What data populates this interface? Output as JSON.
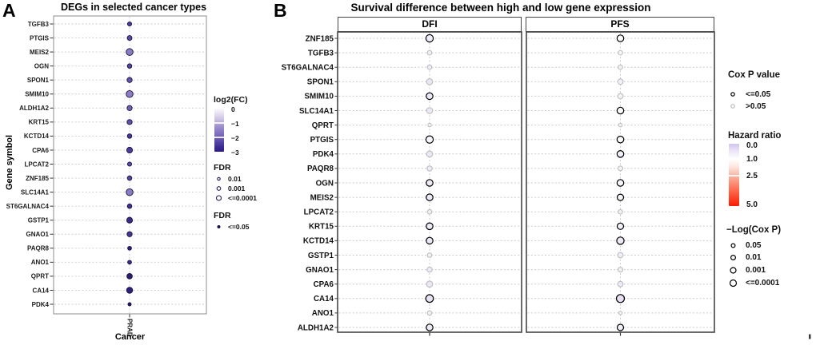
{
  "figure_labels": {
    "panel_a": "A",
    "panel_b": "B"
  },
  "panel_a": {
    "title": "DEGs in selected cancer types",
    "ylabel": "Gene symbol",
    "xlabel": "Cancer",
    "x_tick": "PRAD",
    "legend_log2fc": {
      "title": "log2(FC)",
      "ticks": [
        "0",
        "−1",
        "−2",
        "−3"
      ]
    },
    "legend_fdr_size": {
      "title": "FDR",
      "items": [
        "0.01",
        "0.001",
        "<=0.0001"
      ]
    },
    "legend_fdr_shape": {
      "title": "FDR",
      "items": [
        "<=0.05"
      ]
    }
  },
  "panel_b": {
    "title": "Survival difference between high and low gene expression",
    "facets": [
      "DFI",
      "PFS"
    ],
    "legend_cox": {
      "title": "Cox P value",
      "items": [
        "<=0.05",
        ">0.05"
      ]
    },
    "legend_hr": {
      "title": "Hazard ratio",
      "ticks": [
        "0.0",
        "1.0",
        "2.5",
        "5.0"
      ]
    },
    "legend_logcox": {
      "title": "−Log(Cox P)",
      "items": [
        "0.05",
        "0.01",
        "0.001",
        "<=0.0001"
      ]
    }
  },
  "chart_data": [
    {
      "type": "scatter",
      "title": "DEGs in selected cancer types",
      "xlabel": "Cancer",
      "ylabel": "Gene symbol",
      "x_categories": [
        "PRAD"
      ],
      "color_scale": {
        "name": "log2(FC)",
        "domain": [
          0,
          -3
        ],
        "colors": [
          "#fbfafd",
          "#2b1e85"
        ]
      },
      "size_scale": {
        "name": "FDR",
        "items": [
          "0.01",
          "0.001",
          "<=0.0001"
        ]
      },
      "shape_scale": {
        "name": "FDR",
        "items": [
          "<=0.05"
        ]
      },
      "grid": "dashed",
      "points": [
        {
          "gene": "TGFB3",
          "log2fc_est": -1.6,
          "fdr_bucket": "0.001",
          "r": 2.6,
          "color": "#4c3da0"
        },
        {
          "gene": "PTGIS",
          "log2fc_est": -1.4,
          "fdr_bucket": "0.001",
          "r": 3.0,
          "color": "#5a4aa8"
        },
        {
          "gene": "MEIS2",
          "log2fc_est": -0.8,
          "fdr_bucket": "<=0.0001",
          "r": 4.3,
          "color": "#8b7ac4"
        },
        {
          "gene": "OGN",
          "log2fc_est": -1.6,
          "fdr_bucket": "0.001",
          "r": 2.8,
          "color": "#54449f"
        },
        {
          "gene": "SPON1",
          "log2fc_est": -1.3,
          "fdr_bucket": "0.001",
          "r": 3.2,
          "color": "#6253ab"
        },
        {
          "gene": "SMIM10",
          "log2fc_est": -0.8,
          "fdr_bucket": "<=0.0001",
          "r": 4.3,
          "color": "#8d7cc6"
        },
        {
          "gene": "ALDH1A2",
          "log2fc_est": -1.1,
          "fdr_bucket": "0.001",
          "r": 3.2,
          "color": "#6f60b4"
        },
        {
          "gene": "KRT15",
          "log2fc_est": -1.3,
          "fdr_bucket": "0.001",
          "r": 3.2,
          "color": "#6152aa"
        },
        {
          "gene": "KCTD14",
          "log2fc_est": -1.8,
          "fdr_bucket": "0.001",
          "r": 2.8,
          "color": "#46389a"
        },
        {
          "gene": "CPA6",
          "log2fc_est": -1.6,
          "fdr_bucket": "0.001",
          "r": 3.6,
          "color": "#4b3c9e"
        },
        {
          "gene": "LPCAT2",
          "log2fc_est": -1.4,
          "fdr_bucket": "0.01",
          "r": 2.6,
          "color": "#5c4ca6"
        },
        {
          "gene": "ZNF185",
          "log2fc_est": -1.5,
          "fdr_bucket": "0.001",
          "r": 2.8,
          "color": "#55469e"
        },
        {
          "gene": "SLC14A1",
          "log2fc_est": -0.8,
          "fdr_bucket": "<=0.0001",
          "r": 4.3,
          "color": "#8a79c3"
        },
        {
          "gene": "ST6GALNAC4",
          "log2fc_est": -2.0,
          "fdr_bucket": "0.001",
          "r": 2.8,
          "color": "#3f3194"
        },
        {
          "gene": "GSTP1",
          "log2fc_est": -2.1,
          "fdr_bucket": "<=0.0001",
          "r": 3.6,
          "color": "#392b8c"
        },
        {
          "gene": "GNAO1",
          "log2fc_est": -1.9,
          "fdr_bucket": "0.001",
          "r": 3.2,
          "color": "#443696"
        },
        {
          "gene": "PAQR8",
          "log2fc_est": -2.4,
          "fdr_bucket": "0.01",
          "r": 2.4,
          "color": "#2e2280"
        },
        {
          "gene": "ANO1",
          "log2fc_est": -2.0,
          "fdr_bucket": "0.01",
          "r": 2.4,
          "color": "#3a2d8c"
        },
        {
          "gene": "QPRT",
          "log2fc_est": -2.6,
          "fdr_bucket": "0.001",
          "r": 3.4,
          "color": "#271e72"
        },
        {
          "gene": "CA14",
          "log2fc_est": -2.4,
          "fdr_bucket": "0.001",
          "r": 3.8,
          "color": "#2c2178"
        },
        {
          "gene": "PDK4",
          "log2fc_est": -2.7,
          "fdr_bucket": "0.01",
          "r": 2.0,
          "color": "#221a68"
        }
      ]
    },
    {
      "type": "scatter",
      "title": "Survival difference between high and low gene expression",
      "facets": [
        "DFI",
        "PFS"
      ],
      "color_scale": {
        "name": "Hazard ratio",
        "domain": [
          0,
          5
        ],
        "colors": [
          "#d2c2ec",
          "#ffffff",
          "#fb1b03"
        ]
      },
      "size_scale": {
        "name": "−Log(Cox P)",
        "items": [
          "0.05",
          "0.01",
          "0.001",
          "<=0.0001"
        ]
      },
      "outline_scale": {
        "name": "Cox P value",
        "sig_color": "#000000",
        "ns_color": "#b8b8b8"
      },
      "grid": "dashed",
      "genes": [
        "ZNF185",
        "TGFB3",
        "ST6GALNAC4",
        "SPON1",
        "SMIM10",
        "SLC14A1",
        "QPRT",
        "PTGIS",
        "PDK4",
        "PAQR8",
        "OGN",
        "MEIS2",
        "LPCAT2",
        "KRT15",
        "KCTD14",
        "GSTP1",
        "GNAO1",
        "CPA6",
        "CA14",
        "ANO1",
        "ALDH1A2"
      ],
      "series": [
        {
          "name": "DFI",
          "points": [
            {
              "gene": "ZNF185",
              "r": 4.6,
              "sig": true,
              "fill": "#f1edf8",
              "hr_est": 0.7,
              "p_bucket": "<=0.0001"
            },
            {
              "gene": "TGFB3",
              "r": 2.8,
              "sig": false,
              "fill": "#f3f0f9",
              "hr_est": 0.8,
              "p_bucket": "0.05"
            },
            {
              "gene": "ST6GALNAC4",
              "r": 2.8,
              "sig": false,
              "fill": "#f1edf8",
              "hr_est": 0.7,
              "p_bucket": "0.05"
            },
            {
              "gene": "SPON1",
              "r": 3.8,
              "sig": false,
              "fill": "#ebe5f4",
              "hr_est": 0.6,
              "p_bucket": "0.001"
            },
            {
              "gene": "SMIM10",
              "r": 4.2,
              "sig": true,
              "fill": "#ede8f6",
              "hr_est": 0.7,
              "p_bucket": "<=0.0001"
            },
            {
              "gene": "SLC14A1",
              "r": 3.8,
              "sig": false,
              "fill": "#ece6f5",
              "hr_est": 0.6,
              "p_bucket": "0.001"
            },
            {
              "gene": "QPRT",
              "r": 2.2,
              "sig": false,
              "fill": "#f5f2fa",
              "hr_est": 0.9,
              "p_bucket": "0.05"
            },
            {
              "gene": "PTGIS",
              "r": 4.6,
              "sig": true,
              "fill": "#f7f5fb",
              "hr_est": 0.9,
              "p_bucket": "<=0.0001"
            },
            {
              "gene": "PDK4",
              "r": 3.8,
              "sig": false,
              "fill": "#ece6f5",
              "hr_est": 0.6,
              "p_bucket": "0.001"
            },
            {
              "gene": "PAQR8",
              "r": 3.2,
              "sig": false,
              "fill": "#f0ecf7",
              "hr_est": 0.7,
              "p_bucket": "0.01"
            },
            {
              "gene": "OGN",
              "r": 4.2,
              "sig": true,
              "fill": "#efeaf6",
              "hr_est": 0.7,
              "p_bucket": "<=0.0001"
            },
            {
              "gene": "MEIS2",
              "r": 4.2,
              "sig": true,
              "fill": "#eee9f6",
              "hr_est": 0.7,
              "p_bucket": "<=0.0001"
            },
            {
              "gene": "LPCAT2",
              "r": 2.8,
              "sig": false,
              "fill": "#f2eff8",
              "hr_est": 0.8,
              "p_bucket": "0.05"
            },
            {
              "gene": "KRT15",
              "r": 4.2,
              "sig": true,
              "fill": "#eee9f6",
              "hr_est": 0.7,
              "p_bucket": "<=0.0001"
            },
            {
              "gene": "KCTD14",
              "r": 4.2,
              "sig": true,
              "fill": "#ece7f5",
              "hr_est": 0.7,
              "p_bucket": "<=0.0001"
            },
            {
              "gene": "GSTP1",
              "r": 2.8,
              "sig": false,
              "fill": "#f4f1f9",
              "hr_est": 0.8,
              "p_bucket": "0.05"
            },
            {
              "gene": "GNAO1",
              "r": 3.2,
              "sig": false,
              "fill": "#f0ecf7",
              "hr_est": 0.7,
              "p_bucket": "0.01"
            },
            {
              "gene": "CPA6",
              "r": 3.8,
              "sig": false,
              "fill": "#ece6f5",
              "hr_est": 0.6,
              "p_bucket": "0.001"
            },
            {
              "gene": "CA14",
              "r": 4.8,
              "sig": true,
              "fill": "#e9e2f3",
              "hr_est": 0.6,
              "p_bucket": "<=0.0001"
            },
            {
              "gene": "ANO1",
              "r": 2.8,
              "sig": false,
              "fill": "#f2eff8",
              "hr_est": 0.8,
              "p_bucket": "0.05"
            },
            {
              "gene": "ALDH1A2",
              "r": 4.2,
              "sig": true,
              "fill": "#eee9f6",
              "hr_est": 0.7,
              "p_bucket": "<=0.0001"
            }
          ]
        },
        {
          "name": "PFS",
          "points": [
            {
              "gene": "ZNF185",
              "r": 4.2,
              "sig": true,
              "fill": "#fbfafd",
              "hr_est": 1.0,
              "p_bucket": "<=0.0001"
            },
            {
              "gene": "TGFB3",
              "r": 2.8,
              "sig": false,
              "fill": "#f7f5fb",
              "hr_est": 0.9,
              "p_bucket": "0.05"
            },
            {
              "gene": "ST6GALNAC4",
              "r": 2.8,
              "sig": false,
              "fill": "#f5f2fa",
              "hr_est": 0.9,
              "p_bucket": "0.05"
            },
            {
              "gene": "SPON1",
              "r": 3.4,
              "sig": false,
              "fill": "#f3f0f9",
              "hr_est": 0.8,
              "p_bucket": "0.001"
            },
            {
              "gene": "SMIM10",
              "r": 3.4,
              "sig": false,
              "fill": "#f4f1f9",
              "hr_est": 0.8,
              "p_bucket": "0.001"
            },
            {
              "gene": "SLC14A1",
              "r": 4.2,
              "sig": true,
              "fill": "#fafafd",
              "hr_est": 1.0,
              "p_bucket": "<=0.0001"
            },
            {
              "gene": "QPRT",
              "r": 2.2,
              "sig": false,
              "fill": "#f6f4fa",
              "hr_est": 0.9,
              "p_bucket": "0.05"
            },
            {
              "gene": "PTGIS",
              "r": 4.2,
              "sig": true,
              "fill": "#fbfafd",
              "hr_est": 1.0,
              "p_bucket": "<=0.0001"
            },
            {
              "gene": "PDK4",
              "r": 4.2,
              "sig": true,
              "fill": "#f2eef8",
              "hr_est": 0.8,
              "p_bucket": "<=0.0001"
            },
            {
              "gene": "PAQR8",
              "r": 3.0,
              "sig": false,
              "fill": "#f4f1f9",
              "hr_est": 0.8,
              "p_bucket": "0.01"
            },
            {
              "gene": "OGN",
              "r": 4.2,
              "sig": true,
              "fill": "#f7f5fb",
              "hr_est": 0.9,
              "p_bucket": "<=0.0001"
            },
            {
              "gene": "MEIS2",
              "r": 4.0,
              "sig": true,
              "fill": "#f6f3fa",
              "hr_est": 0.9,
              "p_bucket": "0.001"
            },
            {
              "gene": "LPCAT2",
              "r": 2.8,
              "sig": false,
              "fill": "#f4f1f9",
              "hr_est": 0.8,
              "p_bucket": "0.05"
            },
            {
              "gene": "KRT15",
              "r": 4.0,
              "sig": true,
              "fill": "#f5f2fa",
              "hr_est": 0.9,
              "p_bucket": "0.001"
            },
            {
              "gene": "KCTD14",
              "r": 4.6,
              "sig": true,
              "fill": "#eee8f6",
              "hr_est": 0.7,
              "p_bucket": "<=0.0001"
            },
            {
              "gene": "GSTP1",
              "r": 3.4,
              "sig": false,
              "fill": "#f1edf8",
              "hr_est": 0.7,
              "p_bucket": "0.001"
            },
            {
              "gene": "GNAO1",
              "r": 3.0,
              "sig": false,
              "fill": "#f3f0f9",
              "hr_est": 0.8,
              "p_bucket": "0.01"
            },
            {
              "gene": "CPA6",
              "r": 3.4,
              "sig": false,
              "fill": "#efeaf7",
              "hr_est": 0.7,
              "p_bucket": "0.001"
            },
            {
              "gene": "CA14",
              "r": 5.0,
              "sig": true,
              "fill": "#e9e0f3",
              "hr_est": 0.6,
              "p_bucket": "<=0.0001"
            },
            {
              "gene": "ANO1",
              "r": 2.2,
              "sig": false,
              "fill": "#f5f2fa",
              "hr_est": 0.9,
              "p_bucket": "0.05"
            },
            {
              "gene": "ALDH1A2",
              "r": 4.0,
              "sig": true,
              "fill": "#f3eff8",
              "hr_est": 0.8,
              "p_bucket": "0.001"
            }
          ]
        }
      ]
    }
  ]
}
